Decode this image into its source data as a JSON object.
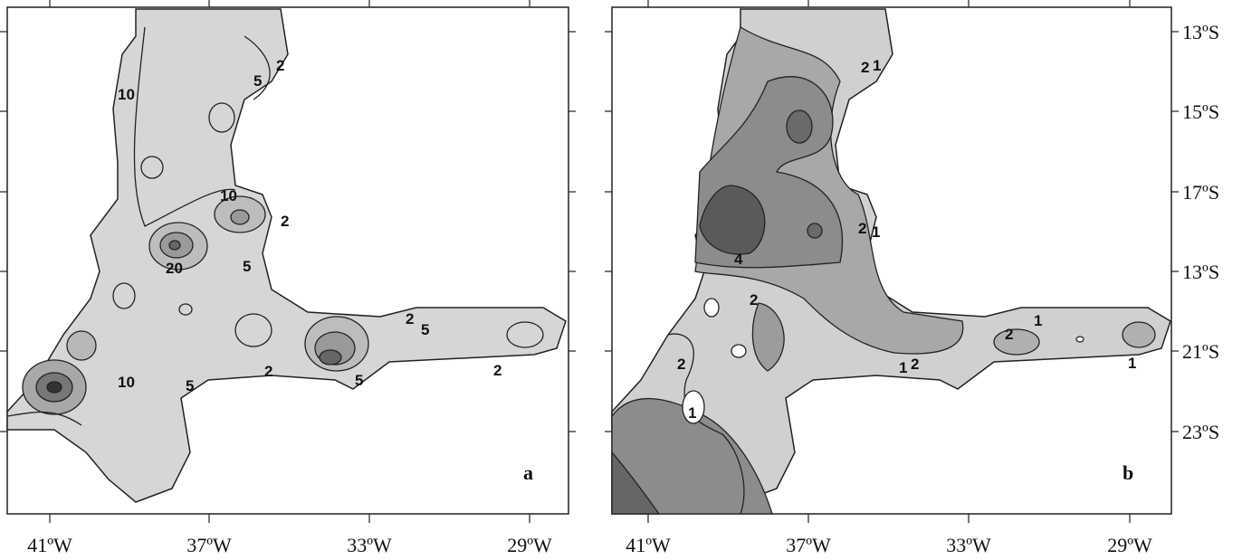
{
  "panels": [
    {
      "label": "a",
      "xticks": [
        "41ºW",
        "37ºW",
        "33ºW",
        "29ºW"
      ],
      "contour_labels": [
        "2",
        "5",
        "10",
        "10",
        "2",
        "20",
        "5",
        "10",
        "5",
        "2",
        "5",
        "2",
        "5",
        "2"
      ]
    },
    {
      "label": "b",
      "xticks": [
        "41ºW",
        "37ºW",
        "33ºW",
        "29ºW"
      ],
      "yticks": [
        "13ºS",
        "15ºS",
        "17ºS",
        "13ºS",
        "21ºS",
        "23ºS"
      ],
      "contour_labels": [
        "2",
        "1",
        "2",
        "1",
        "4",
        "2",
        "2",
        "1",
        "2",
        "1",
        "2",
        "1",
        "1"
      ]
    }
  ]
}
